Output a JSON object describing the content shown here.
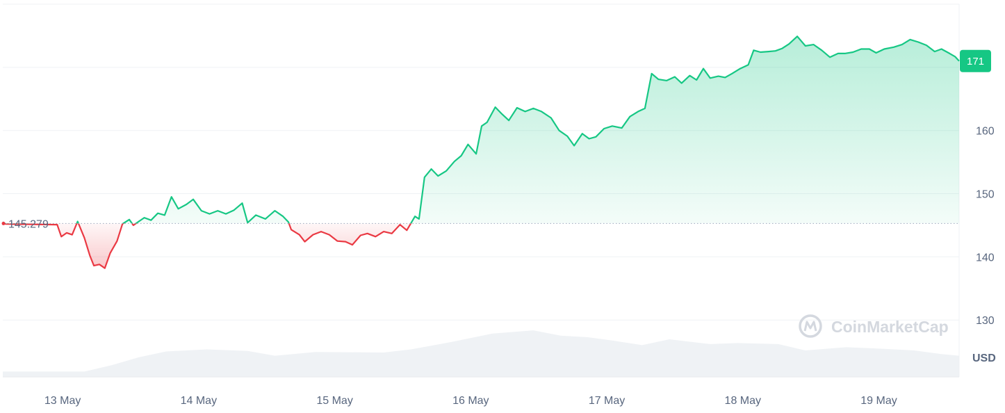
{
  "chart_data": {
    "type": "line",
    "unit": "USD",
    "baseline": {
      "value": 145.279,
      "label": "145.279"
    },
    "current": {
      "value": 171,
      "label": "171"
    },
    "ylim": [
      121,
      180
    ],
    "y_ticks": [
      130,
      140,
      150,
      160
    ],
    "x_ticks": [
      {
        "t": 0.44,
        "label": "13 May"
      },
      {
        "t": 1.44,
        "label": "14 May"
      },
      {
        "t": 2.44,
        "label": "15 May"
      },
      {
        "t": 3.44,
        "label": "16 May"
      },
      {
        "t": 4.44,
        "label": "17 May"
      },
      {
        "t": 5.44,
        "label": "18 May"
      },
      {
        "t": 6.44,
        "label": "19 May"
      }
    ],
    "xlim": [
      0,
      7.03
    ],
    "grid": true,
    "colors": {
      "up": "#16c784",
      "down": "#ea3943",
      "axis": "#58667e",
      "grid": "#eff2f5",
      "volume": "#eaedf1"
    },
    "series": [
      {
        "points": [
          [
            0.0,
            145.5
          ],
          [
            0.02,
            145.2
          ],
          [
            0.4,
            145.1
          ],
          [
            0.43,
            143.2
          ],
          [
            0.47,
            143.8
          ],
          [
            0.51,
            143.5
          ],
          [
            0.55,
            145.6
          ],
          [
            0.6,
            143.0
          ],
          [
            0.64,
            140.2
          ],
          [
            0.67,
            138.6
          ],
          [
            0.71,
            138.8
          ],
          [
            0.75,
            138.2
          ],
          [
            0.79,
            140.6
          ],
          [
            0.84,
            142.5
          ],
          [
            0.88,
            145.2
          ],
          [
            0.93,
            145.9
          ],
          [
            0.96,
            145.0
          ],
          [
            1.0,
            145.6
          ],
          [
            1.04,
            146.2
          ],
          [
            1.09,
            145.8
          ],
          [
            1.14,
            146.9
          ],
          [
            1.19,
            146.6
          ],
          [
            1.24,
            149.5
          ],
          [
            1.29,
            147.6
          ],
          [
            1.35,
            148.3
          ],
          [
            1.4,
            149.1
          ],
          [
            1.46,
            147.3
          ],
          [
            1.52,
            146.8
          ],
          [
            1.58,
            147.3
          ],
          [
            1.64,
            146.8
          ],
          [
            1.7,
            147.4
          ],
          [
            1.76,
            148.5
          ],
          [
            1.8,
            145.4
          ],
          [
            1.86,
            146.6
          ],
          [
            1.93,
            146.0
          ],
          [
            2.0,
            147.3
          ],
          [
            2.06,
            146.4
          ],
          [
            2.1,
            145.5
          ],
          [
            2.12,
            144.3
          ],
          [
            2.18,
            143.5
          ],
          [
            2.22,
            142.4
          ],
          [
            2.28,
            143.5
          ],
          [
            2.34,
            144.0
          ],
          [
            2.4,
            143.5
          ],
          [
            2.46,
            142.5
          ],
          [
            2.52,
            142.4
          ],
          [
            2.57,
            141.9
          ],
          [
            2.63,
            143.4
          ],
          [
            2.68,
            143.7
          ],
          [
            2.74,
            143.2
          ],
          [
            2.8,
            144.0
          ],
          [
            2.86,
            143.7
          ],
          [
            2.92,
            145.1
          ],
          [
            2.97,
            144.2
          ],
          [
            3.03,
            146.4
          ],
          [
            3.06,
            146.0
          ],
          [
            3.1,
            152.6
          ],
          [
            3.15,
            153.9
          ],
          [
            3.2,
            152.8
          ],
          [
            3.26,
            153.6
          ],
          [
            3.32,
            155.1
          ],
          [
            3.37,
            156.0
          ],
          [
            3.42,
            157.8
          ],
          [
            3.48,
            156.3
          ],
          [
            3.52,
            160.7
          ],
          [
            3.56,
            161.3
          ],
          [
            3.62,
            163.7
          ],
          [
            3.67,
            162.6
          ],
          [
            3.72,
            161.6
          ],
          [
            3.78,
            163.6
          ],
          [
            3.84,
            163.0
          ],
          [
            3.9,
            163.5
          ],
          [
            3.96,
            163.0
          ],
          [
            4.03,
            162.0
          ],
          [
            4.09,
            160.0
          ],
          [
            4.15,
            159.1
          ],
          [
            4.2,
            157.6
          ],
          [
            4.26,
            159.5
          ],
          [
            4.31,
            158.7
          ],
          [
            4.36,
            159.0
          ],
          [
            4.42,
            160.3
          ],
          [
            4.48,
            160.7
          ],
          [
            4.55,
            160.4
          ],
          [
            4.61,
            162.2
          ],
          [
            4.67,
            163.0
          ],
          [
            4.72,
            163.5
          ],
          [
            4.77,
            169.0
          ],
          [
            4.82,
            168.1
          ],
          [
            4.88,
            167.9
          ],
          [
            4.94,
            168.5
          ],
          [
            4.99,
            167.5
          ],
          [
            5.05,
            168.7
          ],
          [
            5.1,
            168.0
          ],
          [
            5.15,
            169.8
          ],
          [
            5.2,
            168.3
          ],
          [
            5.26,
            168.6
          ],
          [
            5.31,
            168.4
          ],
          [
            5.36,
            169.0
          ],
          [
            5.42,
            169.8
          ],
          [
            5.48,
            170.4
          ],
          [
            5.52,
            172.7
          ],
          [
            5.57,
            172.4
          ],
          [
            5.63,
            172.5
          ],
          [
            5.68,
            172.6
          ],
          [
            5.73,
            173.0
          ],
          [
            5.78,
            173.7
          ],
          [
            5.84,
            174.9
          ],
          [
            5.9,
            173.4
          ],
          [
            5.96,
            173.6
          ],
          [
            6.02,
            172.7
          ],
          [
            6.08,
            171.6
          ],
          [
            6.14,
            172.2
          ],
          [
            6.19,
            172.2
          ],
          [
            6.25,
            172.4
          ],
          [
            6.31,
            172.9
          ],
          [
            6.37,
            172.9
          ],
          [
            6.42,
            172.3
          ],
          [
            6.48,
            172.9
          ],
          [
            6.55,
            173.2
          ],
          [
            6.61,
            173.6
          ],
          [
            6.67,
            174.4
          ],
          [
            6.73,
            174.0
          ],
          [
            6.79,
            173.5
          ],
          [
            6.85,
            172.5
          ],
          [
            6.9,
            172.9
          ],
          [
            6.96,
            172.2
          ],
          [
            7.0,
            171.7
          ],
          [
            7.03,
            171.0
          ]
        ]
      }
    ],
    "volume": [
      [
        0.0,
        0.1
      ],
      [
        0.6,
        0.1
      ],
      [
        0.8,
        0.22
      ],
      [
        1.0,
        0.37
      ],
      [
        1.2,
        0.48
      ],
      [
        1.5,
        0.52
      ],
      [
        1.8,
        0.49
      ],
      [
        2.0,
        0.4
      ],
      [
        2.3,
        0.47
      ],
      [
        2.8,
        0.46
      ],
      [
        3.0,
        0.52
      ],
      [
        3.3,
        0.66
      ],
      [
        3.6,
        0.82
      ],
      [
        3.9,
        0.88
      ],
      [
        4.1,
        0.78
      ],
      [
        4.3,
        0.75
      ],
      [
        4.5,
        0.68
      ],
      [
        4.7,
        0.6
      ],
      [
        4.9,
        0.71
      ],
      [
        5.2,
        0.62
      ],
      [
        5.4,
        0.64
      ],
      [
        5.7,
        0.62
      ],
      [
        5.9,
        0.5
      ],
      [
        6.2,
        0.56
      ],
      [
        6.4,
        0.54
      ],
      [
        6.7,
        0.5
      ],
      [
        6.9,
        0.43
      ],
      [
        7.03,
        0.4
      ]
    ]
  },
  "watermark": {
    "text": "CoinMarketCap",
    "icon": "coinmarketcap-logo-icon"
  }
}
